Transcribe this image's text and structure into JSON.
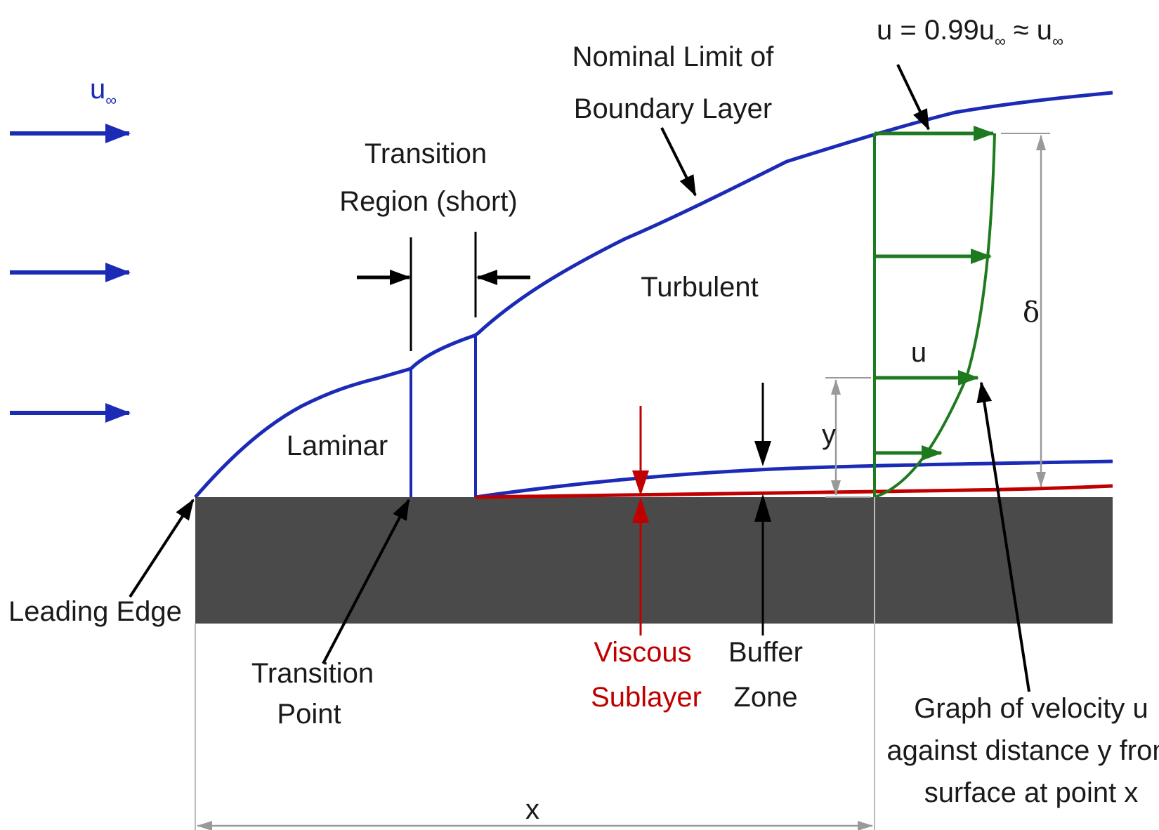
{
  "free_stream": {
    "symbol": "u",
    "subscript": "∞"
  },
  "edge_velocity": {
    "prefix": "u = 0.99u",
    "sub1": "∞",
    "mid": " ≈ u",
    "sub2": "∞"
  },
  "labels": {
    "nominal_limit_line1": "Nominal Limit of",
    "nominal_limit_line2": "Boundary Layer",
    "transition_region_line1": "Transition",
    "transition_region_line2": "Region (short)",
    "turbulent": "Turbulent",
    "laminar": "Laminar",
    "leading_edge": "Leading Edge",
    "transition_point_line1": "Transition",
    "transition_point_line2": "Point",
    "viscous_sublayer_line1": "Viscous",
    "viscous_sublayer_line2": "Sublayer",
    "buffer_zone_line1": "Buffer",
    "buffer_zone_line2": "Zone",
    "graph_caption_line1": "Graph of velocity u",
    "graph_caption_line2": "against distance y from",
    "graph_caption_line3": "surface at point x",
    "u": "u",
    "y": "y",
    "delta": "δ",
    "x": "x"
  },
  "colors": {
    "boundary_layer": "#1c2bb5",
    "viscous_sublayer": "#c00000",
    "velocity_profile": "#1e7a1e",
    "plate": "#4a4a4a",
    "dimension": "#999999"
  }
}
